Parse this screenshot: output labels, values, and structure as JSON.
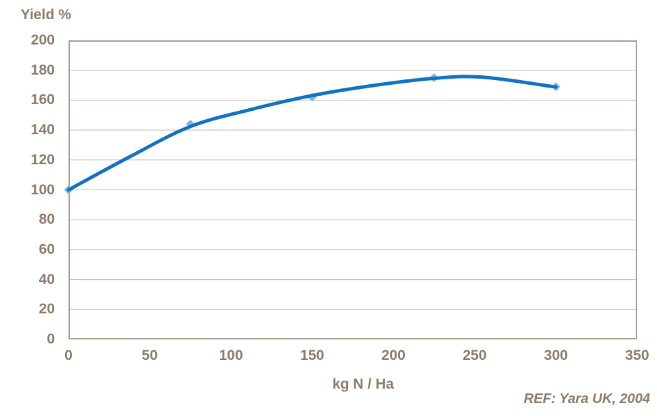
{
  "chart_data": {
    "type": "line",
    "title": "Yield %",
    "xlabel": "kg N / Ha",
    "ylabel": "Yield %",
    "reference": "REF: Yara UK, 2004",
    "x": [
      0,
      75,
      150,
      225,
      300
    ],
    "values": [
      100,
      144,
      162,
      175,
      169
    ],
    "marker": "diamond",
    "trendline": [
      [
        0,
        100
      ],
      [
        37.5,
        122
      ],
      [
        75,
        142.4
      ],
      [
        112.5,
        153.8
      ],
      [
        150,
        163.1
      ],
      [
        187.5,
        169.8
      ],
      [
        225,
        174.6
      ],
      [
        255,
        175.4
      ],
      [
        300,
        168.8
      ]
    ],
    "xlim": [
      0,
      350
    ],
    "ylim": [
      0,
      200
    ],
    "xticks": [
      0,
      50,
      100,
      150,
      200,
      250,
      300,
      350
    ],
    "yticks": [
      0,
      20,
      40,
      60,
      80,
      100,
      120,
      140,
      160,
      180,
      200
    ],
    "grid": "horizontal",
    "legend": "none",
    "colors": {
      "line": "#1272C2",
      "marker": "#77B6EF",
      "text": "#8C7B6B",
      "frame": "#A69C90",
      "grid": "#C4BBB1",
      "background": "#FFFFFF"
    }
  }
}
